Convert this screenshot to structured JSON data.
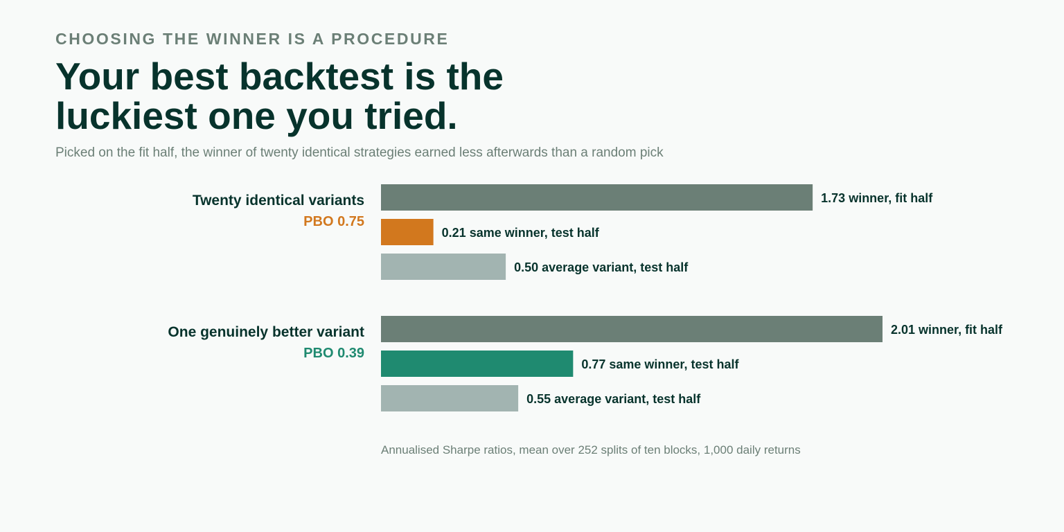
{
  "kicker": "CHOOSING THE WINNER IS A PROCEDURE",
  "headline": "Your best backtest is the luckiest one you tried.",
  "subtitle": "Picked on the fit half, the winner of twenty identical strategies earned less afterwards than a random pick",
  "footnote": "Annualised Sharpe ratios, mean over 252 splits of ten blocks, 1,000 daily returns",
  "colors": {
    "fit_winner": "#6b7f76",
    "average_variant": "#a2b4b1",
    "identical_accent": "#d2781e",
    "better_accent": "#1f8a70",
    "text_dark": "#07332c",
    "text_muted": "#6b7f76"
  },
  "chart_data": {
    "type": "bar",
    "orientation": "horizontal",
    "groups": [
      {
        "name": "Twenty identical variants",
        "pbo_label": "PBO 0.75",
        "accent": "identical_accent",
        "bars": [
          {
            "value": 1.73,
            "value_label": "1.73",
            "text": "winner, fit half",
            "color": "fit_winner"
          },
          {
            "value": 0.21,
            "value_label": "0.21",
            "text": "same winner, test half",
            "color": "identical_accent"
          },
          {
            "value": 0.5,
            "value_label": "0.50",
            "text": "average variant, test half",
            "color": "average_variant"
          }
        ]
      },
      {
        "name": "One genuinely better variant",
        "pbo_label": "PBO 0.39",
        "accent": "better_accent",
        "bars": [
          {
            "value": 2.01,
            "value_label": "2.01",
            "text": "winner, fit half",
            "color": "fit_winner"
          },
          {
            "value": 0.77,
            "value_label": "0.77",
            "text": "same winner, test half",
            "color": "better_accent"
          },
          {
            "value": 0.55,
            "value_label": "0.55",
            "text": "average variant, test half",
            "color": "average_variant"
          }
        ]
      }
    ],
    "xlim": [
      0,
      2.01
    ],
    "grid": false,
    "legend": "none"
  }
}
